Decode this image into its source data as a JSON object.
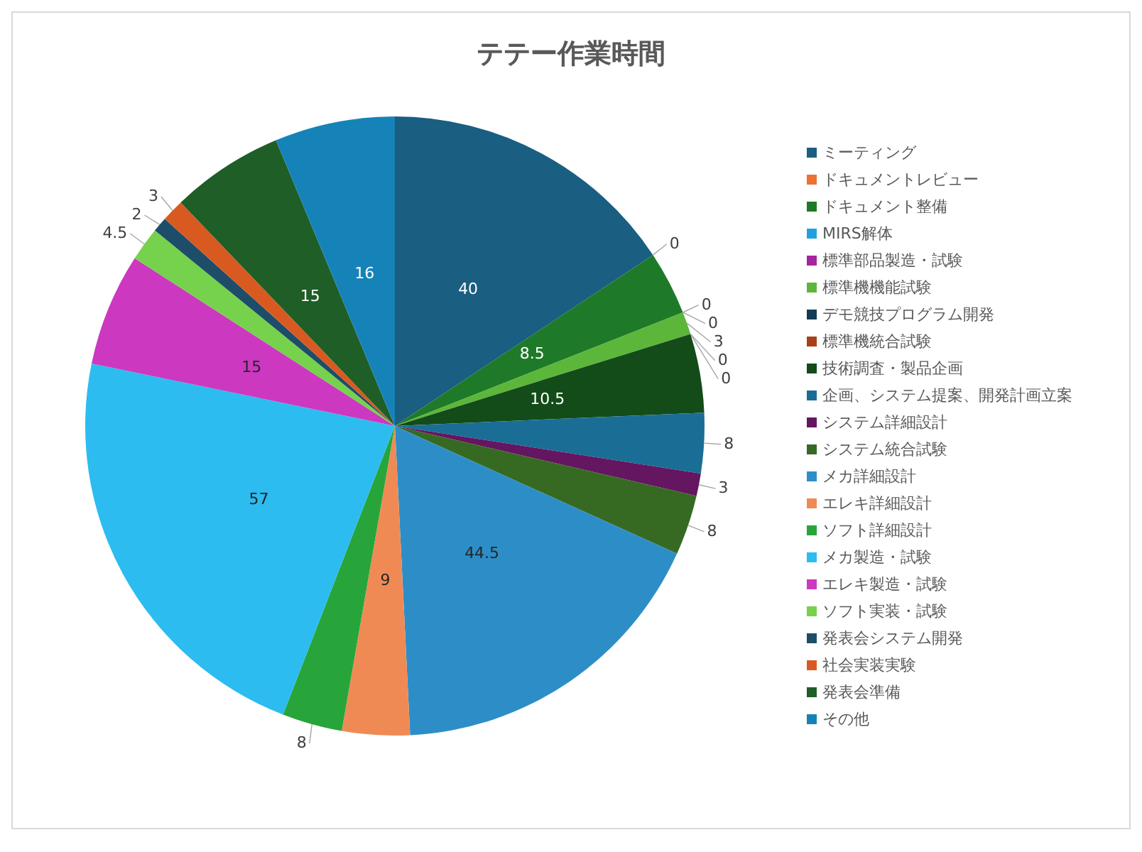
{
  "chart_data": {
    "type": "pie",
    "title": "テテー作業時間",
    "categories": [
      "ミーティング",
      "ドキュメントレビュー",
      "ドキュメント整備",
      "MIRS解体",
      "標準部品製造・試験",
      "標準機機能試験",
      "デモ競技プログラム開発",
      "標準機統合試験",
      "技術調査・製品企画",
      "企画、システム提案、開発計画立案",
      "システム詳細設計",
      "システム統合試験",
      "メカ詳細設計",
      "エレキ詳細設計",
      "ソフト詳細設計",
      "メカ製造・試験",
      "エレキ製造・試験",
      "ソフト実装・試験",
      "発表会システム開発",
      "社会実装実験",
      "発表会準備",
      "その他"
    ],
    "values": [
      40,
      0,
      8.5,
      0,
      0,
      3,
      0,
      0,
      10.5,
      8,
      3,
      8,
      44.5,
      9,
      8,
      57,
      15,
      4.5,
      2,
      3,
      15,
      16
    ],
    "colors": [
      "#1a5e82",
      "#ed7131",
      "#1e7a28",
      "#1fa1e0",
      "#a5259e",
      "#5cb63a",
      "#123a52",
      "#a9401a",
      "#134c19",
      "#1a6e96",
      "#641660",
      "#366a22",
      "#2d8ec7",
      "#f08a55",
      "#27a53a",
      "#2cbcf0",
      "#cc38c0",
      "#76d24c",
      "#1d4d68",
      "#d95a20",
      "#1f5e26",
      "#1683b8"
    ],
    "value_labels": [
      "40",
      "0",
      "8.5",
      "0",
      "0",
      "3",
      "0",
      "0",
      "10.5",
      "8",
      "3",
      "8",
      "44.5",
      "9",
      "8",
      "57",
      "15",
      "4.5",
      "2",
      "3",
      "15",
      "16"
    ],
    "legend": "right"
  }
}
